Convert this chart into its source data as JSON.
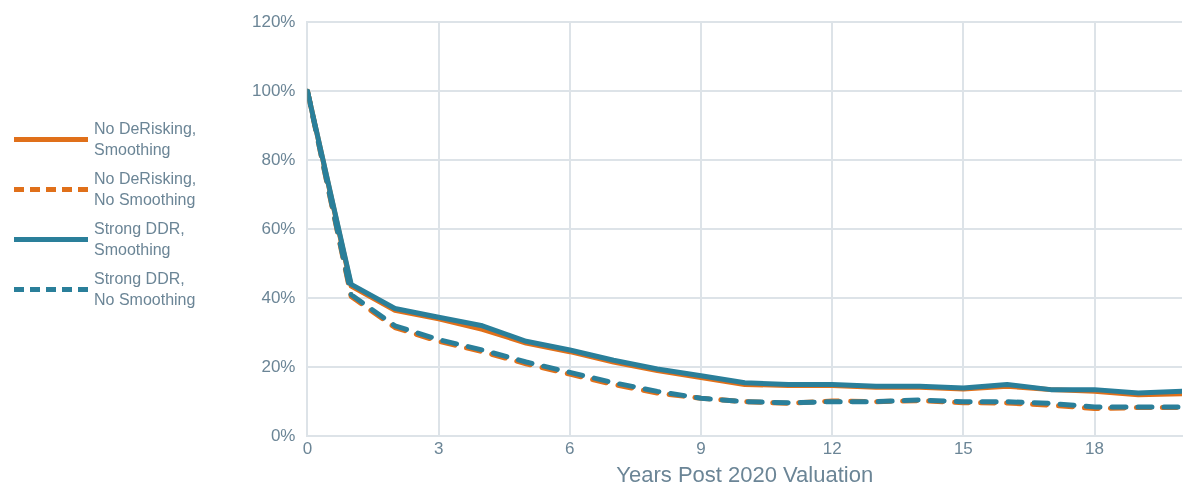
{
  "chart_data": {
    "type": "line",
    "xlabel": "Years Post 2020 Valuation",
    "x": [
      0,
      1,
      2,
      3,
      4,
      5,
      6,
      7,
      8,
      9,
      10,
      11,
      12,
      13,
      14,
      15,
      16,
      17,
      18,
      19,
      20
    ],
    "xlim": [
      0,
      20
    ],
    "xticks": [
      0,
      3,
      6,
      9,
      12,
      15,
      18
    ],
    "ylim": [
      0,
      120
    ],
    "yticks": [
      {
        "value": 0,
        "label": "0%"
      },
      {
        "value": 20,
        "label": "20%"
      },
      {
        "value": 40,
        "label": "40%"
      },
      {
        "value": 60,
        "label": "60%"
      },
      {
        "value": 80,
        "label": "80%"
      },
      {
        "value": 100,
        "label": "100%"
      },
      {
        "value": 120,
        "label": "120%"
      }
    ],
    "grid": true,
    "legend": "left",
    "marker": "none",
    "series": [
      {
        "name": "No DeRisking, Smoothing",
        "color": "#e0701a",
        "line_style": "solid",
        "values": [
          100,
          43.5,
          36.5,
          34,
          31,
          27,
          24.5,
          21.5,
          19,
          17,
          15,
          14.7,
          14.7,
          14.2,
          14.2,
          13.7,
          14.5,
          13.5,
          13,
          12,
          12.3
        ]
      },
      {
        "name": "No DeRisking, No Smoothing",
        "color": "#e0701a",
        "line_style": "dashed",
        "values": [
          100,
          40.5,
          31.5,
          27.5,
          24.5,
          21,
          18,
          15,
          12.5,
          11,
          10,
          9.5,
          10.2,
          10,
          10.3,
          9.7,
          9.6,
          9,
          8,
          8.3,
          8.3
        ]
      },
      {
        "name": "Strong DDR, Smoothing",
        "color": "#2a7f9a",
        "line_style": "solid",
        "values": [
          100,
          44,
          37,
          34.5,
          32,
          27.5,
          25,
          22,
          19.5,
          17.5,
          15.5,
          15,
          15,
          14.5,
          14.5,
          14,
          15,
          13.5,
          13.5,
          12.5,
          13
        ]
      },
      {
        "name": "Strong DDR, No Smoothing",
        "color": "#2a7f9a",
        "line_style": "dashed",
        "values": [
          100,
          41,
          32,
          28,
          25,
          21.5,
          18.5,
          15.5,
          13,
          11,
          10,
          9.7,
          10,
          10,
          10.5,
          10,
          10,
          9.5,
          8.5,
          8.5,
          8.5
        ]
      }
    ]
  }
}
